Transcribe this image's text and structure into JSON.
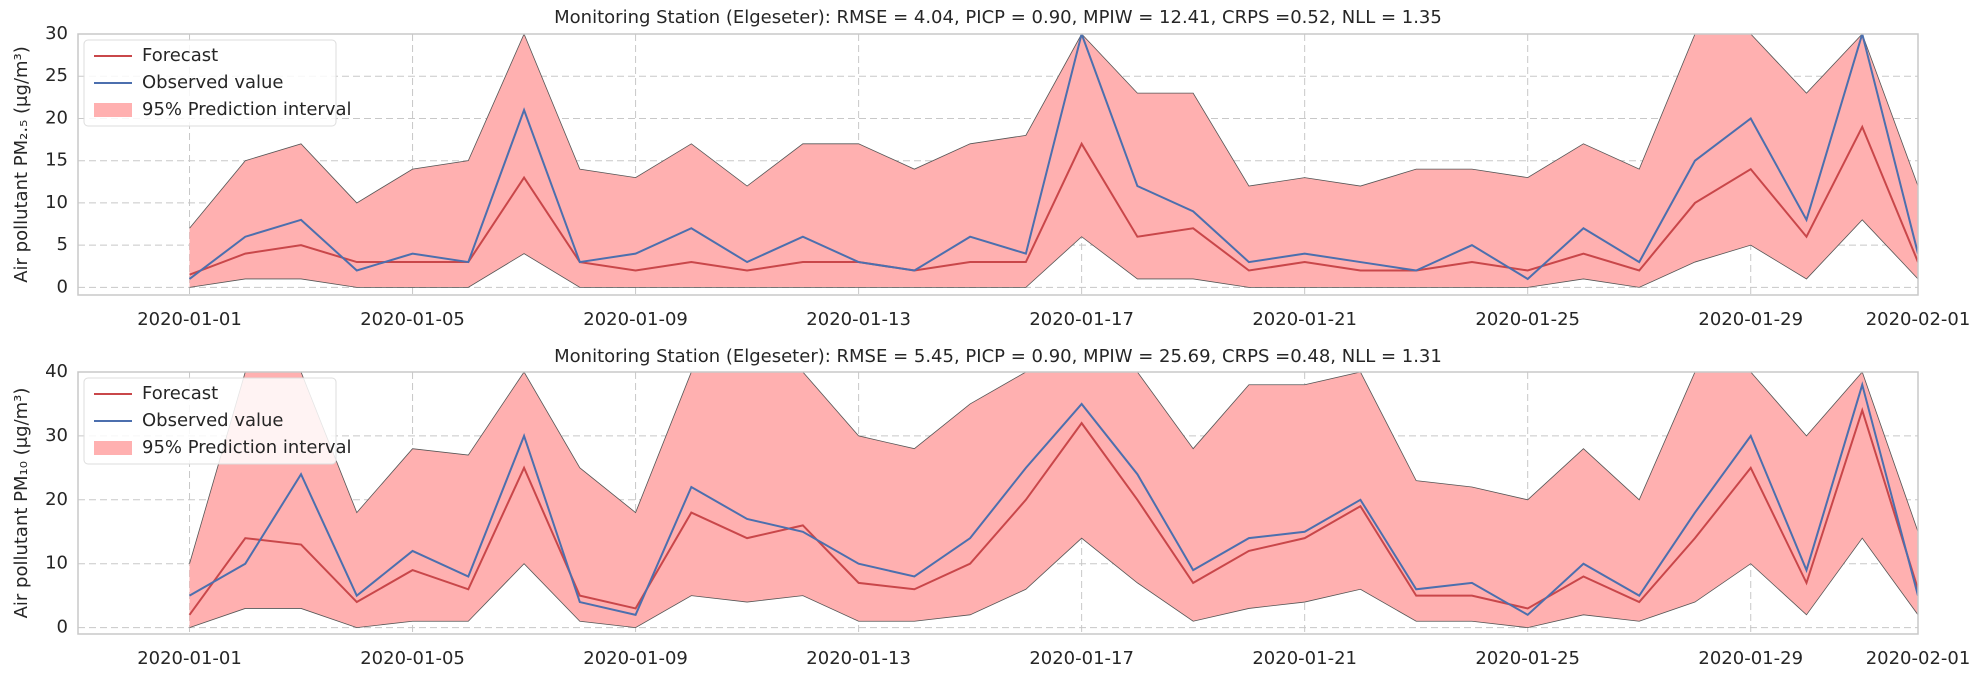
{
  "chart_data": [
    {
      "type": "line",
      "title": "Monitoring Station (Elgeseter): RMSE = 4.04, PICP = 0.90, MPIW = 12.41, CRPS =0.52, NLL = 1.35",
      "y_label": "Air pollutant PM₂.₅ (μg/m³)",
      "x": [
        "2020-01-01",
        "2020-01-02",
        "2020-01-03",
        "2020-01-04",
        "2020-01-05",
        "2020-01-06",
        "2020-01-07",
        "2020-01-08",
        "2020-01-09",
        "2020-01-10",
        "2020-01-11",
        "2020-01-12",
        "2020-01-13",
        "2020-01-14",
        "2020-01-15",
        "2020-01-16",
        "2020-01-17",
        "2020-01-18",
        "2020-01-19",
        "2020-01-20",
        "2020-01-21",
        "2020-01-22",
        "2020-01-23",
        "2020-01-24",
        "2020-01-25",
        "2020-01-26",
        "2020-01-27",
        "2020-01-28",
        "2020-01-29",
        "2020-01-30",
        "2020-01-31",
        "2020-02-01"
      ],
      "xlim": [
        "2019-12-30",
        "2020-02-01"
      ],
      "xticks": [
        "2020-01-01",
        "2020-01-05",
        "2020-01-09",
        "2020-01-13",
        "2020-01-17",
        "2020-01-21",
        "2020-01-25",
        "2020-01-29",
        "2020-02-01"
      ],
      "ylim": [
        -0.9,
        30
      ],
      "yticks": [
        0,
        5,
        10,
        15,
        20,
        25,
        30
      ],
      "grid": true,
      "legend": "upper left",
      "series": [
        {
          "name": "Forecast",
          "color": "#c9474a",
          "values": [
            1.5,
            4,
            5,
            3,
            3,
            3,
            13,
            3,
            2,
            3,
            2,
            3,
            3,
            2,
            3,
            3,
            17,
            6,
            7,
            2,
            3,
            2,
            2,
            3,
            2,
            4,
            2,
            10,
            14,
            6,
            19,
            3
          ]
        },
        {
          "name": "Observed value",
          "color": "#4c6fae",
          "values": [
            1,
            6,
            8,
            2,
            4,
            3,
            21,
            3,
            4,
            7,
            3,
            6,
            3,
            2,
            6,
            4,
            30,
            12,
            9,
            3,
            4,
            3,
            2,
            5,
            1,
            7,
            3,
            15,
            20,
            8,
            30,
            4
          ]
        },
        {
          "name": "95% Prediction interval",
          "color": "#ffb0b0",
          "type": "band",
          "lower": [
            0,
            1,
            1,
            0,
            0,
            0,
            4,
            0,
            0,
            0,
            0,
            0,
            0,
            0,
            0,
            0,
            6,
            1,
            1,
            0,
            0,
            0,
            0,
            0,
            0,
            1,
            0,
            3,
            5,
            1,
            8,
            1
          ],
          "upper": [
            7,
            15,
            17,
            10,
            14,
            15,
            30,
            14,
            13,
            17,
            12,
            17,
            17,
            14,
            17,
            18,
            30,
            23,
            23,
            12,
            13,
            12,
            14,
            14,
            13,
            17,
            14,
            30,
            30,
            23,
            30,
            12
          ]
        }
      ]
    },
    {
      "type": "line",
      "title": "Monitoring Station (Elgeseter): RMSE = 5.45, PICP = 0.90, MPIW = 25.69, CRPS =0.48, NLL = 1.31",
      "y_label": "Air pollutant PM₁₀ (μg/m³)",
      "x": [
        "2020-01-01",
        "2020-01-02",
        "2020-01-03",
        "2020-01-04",
        "2020-01-05",
        "2020-01-06",
        "2020-01-07",
        "2020-01-08",
        "2020-01-09",
        "2020-01-10",
        "2020-01-11",
        "2020-01-12",
        "2020-01-13",
        "2020-01-14",
        "2020-01-15",
        "2020-01-16",
        "2020-01-17",
        "2020-01-18",
        "2020-01-19",
        "2020-01-20",
        "2020-01-21",
        "2020-01-22",
        "2020-01-23",
        "2020-01-24",
        "2020-01-25",
        "2020-01-26",
        "2020-01-27",
        "2020-01-28",
        "2020-01-29",
        "2020-01-30",
        "2020-01-31",
        "2020-02-01"
      ],
      "xlim": [
        "2019-12-30",
        "2020-02-01"
      ],
      "xticks": [
        "2020-01-01",
        "2020-01-05",
        "2020-01-09",
        "2020-01-13",
        "2020-01-17",
        "2020-01-21",
        "2020-01-25",
        "2020-01-29",
        "2020-02-01"
      ],
      "ylim": [
        -1,
        40
      ],
      "yticks": [
        0,
        10,
        20,
        30,
        40
      ],
      "grid": true,
      "legend": "upper left",
      "series": [
        {
          "name": "Forecast",
          "color": "#c9474a",
          "values": [
            2,
            14,
            13,
            4,
            9,
            6,
            25,
            5,
            3,
            18,
            14,
            16,
            7,
            6,
            10,
            20,
            32,
            20,
            7,
            12,
            14,
            19,
            5,
            5,
            3,
            8,
            4,
            14,
            25,
            7,
            34,
            6
          ]
        },
        {
          "name": "Observed value",
          "color": "#4c6fae",
          "values": [
            5,
            10,
            24,
            5,
            12,
            8,
            30,
            4,
            2,
            22,
            17,
            15,
            10,
            8,
            14,
            25,
            35,
            24,
            9,
            14,
            15,
            20,
            6,
            7,
            2,
            10,
            5,
            18,
            30,
            9,
            38,
            5
          ]
        },
        {
          "name": "95% Prediction interval",
          "color": "#ffb0b0",
          "type": "band",
          "lower": [
            0,
            3,
            3,
            0,
            1,
            1,
            10,
            1,
            0,
            5,
            4,
            5,
            1,
            1,
            2,
            6,
            14,
            7,
            1,
            3,
            4,
            6,
            1,
            1,
            0,
            2,
            1,
            4,
            10,
            2,
            14,
            2
          ],
          "upper": [
            10,
            40,
            40,
            18,
            28,
            27,
            40,
            25,
            18,
            40,
            40,
            40,
            30,
            28,
            35,
            40,
            40,
            40,
            28,
            38,
            38,
            40,
            23,
            22,
            20,
            28,
            20,
            40,
            40,
            30,
            40,
            15
          ]
        }
      ]
    }
  ]
}
